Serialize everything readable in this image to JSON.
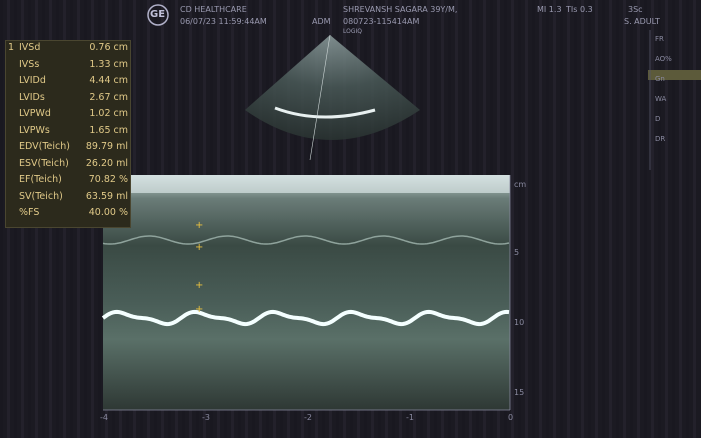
{
  "header": {
    "logo": "GE",
    "institution": "CD HEALTHCARE",
    "datetime": "06/07/23 11:59:44AM",
    "operator": "ADM",
    "patient": "SHREVANSH SAGARA 39Y/M,",
    "exam_id": "080723-115414AM",
    "system": "LOGIQ",
    "mi": "MI 1.3",
    "tis": "TIs 0.3",
    "probe": "3Sc",
    "preset": "S. ADULT"
  },
  "measurements": {
    "index": "1",
    "rows": [
      [
        "IVSd",
        "0.76 cm"
      ],
      [
        "IVSs",
        "1.33 cm"
      ],
      [
        "LVIDd",
        "4.44 cm"
      ],
      [
        "LVIDs",
        "2.67 cm"
      ],
      [
        "LVPWd",
        "1.02 cm"
      ],
      [
        "LVPWs",
        "1.65 cm"
      ],
      [
        "EDV(Teich)",
        "89.79 ml"
      ],
      [
        "ESV(Teich)",
        "26.20 ml"
      ],
      [
        "EF(Teich)",
        "70.82 %"
      ],
      [
        "SV(Teich)",
        "63.59 ml"
      ],
      [
        "%FS",
        "40.00 %"
      ]
    ]
  },
  "side_panel": [
    "FR",
    "AO%",
    "Gn",
    "WA",
    "D",
    "DR"
  ],
  "depth_scale": [
    "cm",
    "5",
    "10",
    "15"
  ],
  "time_scale": [
    "-4",
    "-3",
    "-2",
    "-1",
    "0"
  ]
}
